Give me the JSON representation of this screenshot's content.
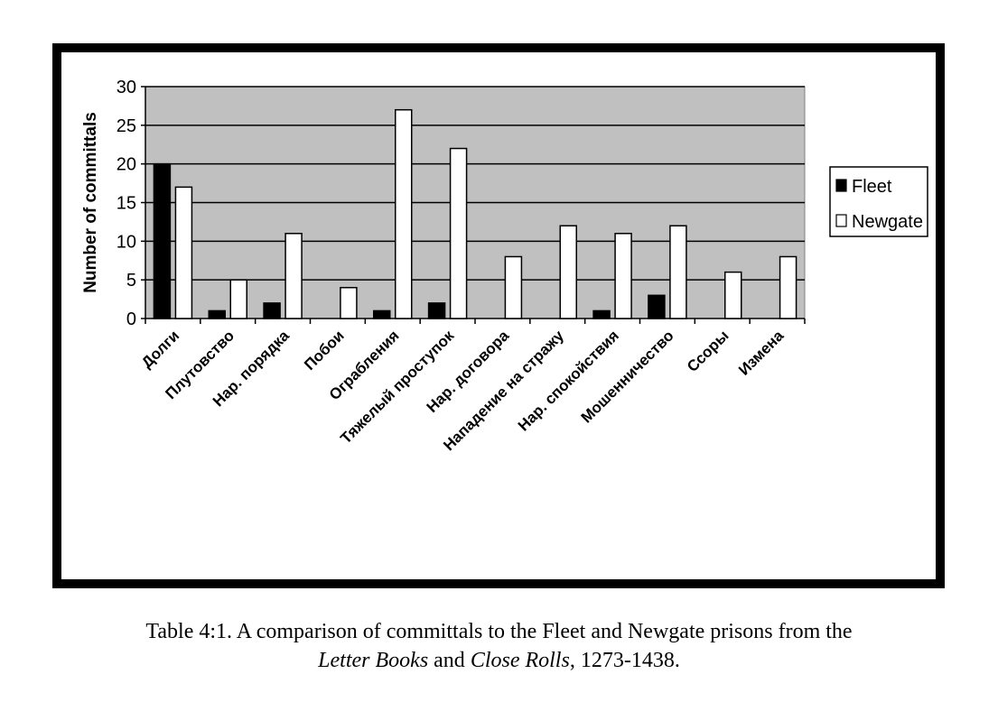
{
  "chart_data": {
    "type": "bar",
    "title": "",
    "xlabel": "",
    "ylabel": "Number of committals",
    "ylim": [
      0,
      30
    ],
    "yticks": [
      0,
      5,
      10,
      15,
      20,
      25,
      30
    ],
    "grid": true,
    "legend_position": "right",
    "categories": [
      "Долги",
      "Плутовство",
      "Нар. порядка",
      "Побои",
      "Ограбления",
      "Тяжелый проступок",
      "Нар. договора",
      "Нападение на стражу",
      "Нар. спокойствия",
      "Мошенничество",
      "Ссоры",
      "Измена"
    ],
    "series": [
      {
        "name": "Fleet",
        "color": "#000000",
        "values": [
          20,
          1,
          2,
          0,
          1,
          2,
          0,
          0,
          1,
          3,
          0,
          0
        ]
      },
      {
        "name": "Newgate",
        "color": "#ffffff",
        "values": [
          17,
          5,
          11,
          4,
          27,
          22,
          8,
          12,
          11,
          12,
          6,
          8
        ]
      }
    ],
    "plot_background": "#c0c0c0"
  },
  "caption": {
    "line1": "Table 4:1. A comparison of committals to the Fleet and Newgate prisons from the",
    "italic1": "Letter Books",
    "and": " and ",
    "italic2": "Close Rolls",
    "tail": ", 1273-1438."
  }
}
